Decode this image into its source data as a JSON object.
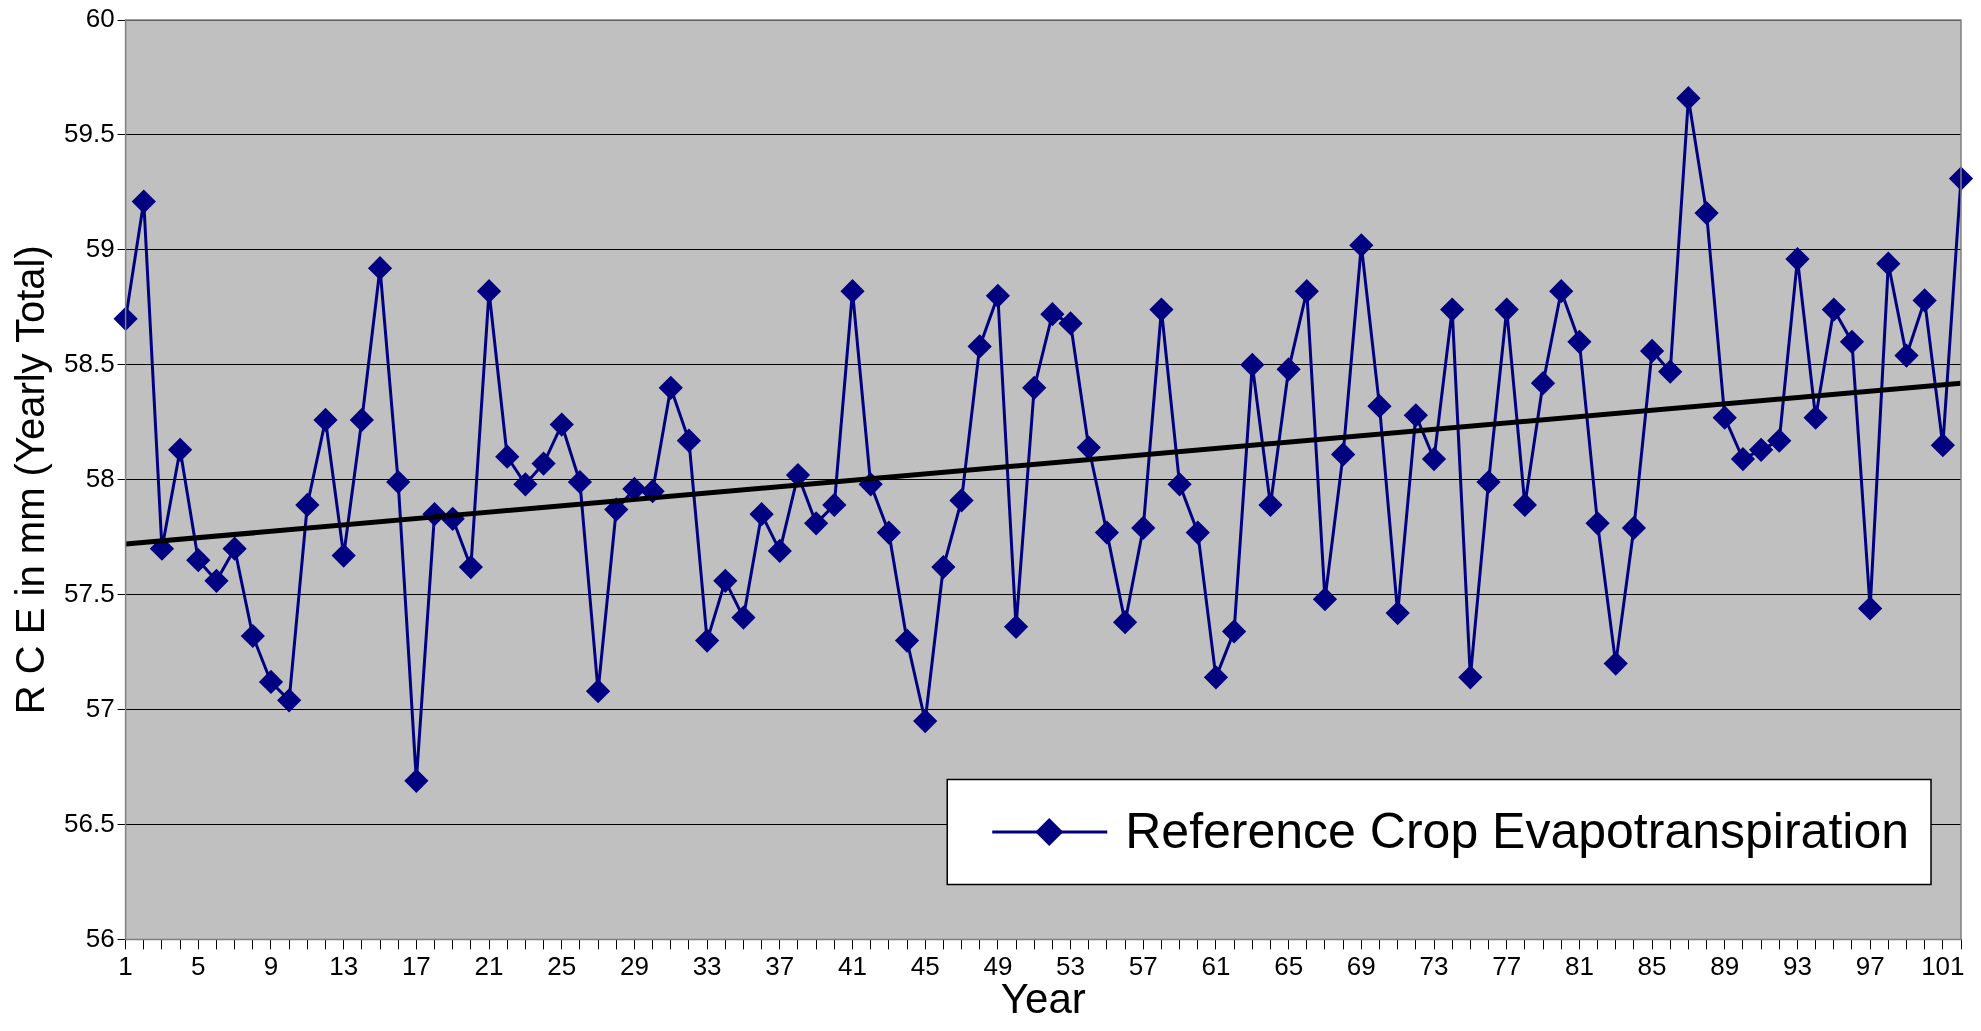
{
  "chart_data": {
    "type": "line",
    "xlabel": "Year",
    "ylabel": "R C E in mm (Yearly Total)",
    "categories": [
      "1",
      null,
      null,
      null,
      "5",
      null,
      null,
      null,
      "9",
      null,
      null,
      null,
      "13",
      null,
      null,
      null,
      "17",
      null,
      null,
      null,
      "21",
      null,
      null,
      null,
      "25",
      null,
      null,
      null,
      "29",
      null,
      null,
      null,
      "33",
      null,
      null,
      null,
      "37",
      null,
      null,
      null,
      "41",
      null,
      null,
      null,
      "45",
      null,
      null,
      null,
      "49",
      null,
      null,
      null,
      "53",
      null,
      null,
      null,
      "57",
      null,
      null,
      null,
      "61",
      null,
      null,
      null,
      "65",
      null,
      null,
      null,
      "69",
      null,
      null,
      null,
      "73",
      null,
      null,
      null,
      "77",
      null,
      null,
      null,
      "81",
      null,
      null,
      null,
      "85",
      null,
      null,
      null,
      "89",
      null,
      null,
      null,
      "93",
      null,
      null,
      null,
      "97",
      null,
      null,
      null,
      "101",
      null
    ],
    "series": [
      {
        "name": "Reference Crop Evapotranspiration",
        "color": "#000080",
        "marker": "diamond",
        "values": [
          58.7,
          59.21,
          57.7,
          58.13,
          57.65,
          57.56,
          57.7,
          57.32,
          57.12,
          57.04,
          57.89,
          58.26,
          57.67,
          58.26,
          58.92,
          57.99,
          56.69,
          57.85,
          57.83,
          57.62,
          58.82,
          58.1,
          57.98,
          58.07,
          58.24,
          57.99,
          57.08,
          57.87,
          57.96,
          57.95,
          58.4,
          58.17,
          57.3,
          57.56,
          57.4,
          57.85,
          57.69,
          58.02,
          57.81,
          57.89,
          58.82,
          57.98,
          57.77,
          57.3,
          56.95,
          57.62,
          57.91,
          58.58,
          58.8,
          57.36,
          58.4,
          58.72,
          58.68,
          58.14,
          57.77,
          57.38,
          57.79,
          58.74,
          57.98,
          57.77,
          57.14,
          57.34,
          58.5,
          57.89,
          58.48,
          58.82,
          57.48,
          58.11,
          59.02,
          58.32,
          57.42,
          58.28,
          58.09,
          58.74,
          57.14,
          57.99,
          58.74,
          57.89,
          58.42,
          58.82,
          58.6,
          57.81,
          57.2,
          57.79,
          58.56,
          58.47,
          59.66,
          59.16,
          58.27,
          58.09,
          58.13,
          58.17,
          58.96,
          58.27,
          58.74,
          58.6,
          57.44,
          58.94,
          58.54,
          58.78,
          58.15,
          59.31
        ]
      },
      {
        "type": "line",
        "color": "#000000",
        "marker": "none",
        "values": [
          57.72,
          null,
          null,
          null,
          null,
          null,
          null,
          null,
          null,
          null,
          null,
          null,
          null,
          null,
          null,
          null,
          null,
          null,
          null,
          null,
          null,
          null,
          null,
          null,
          null,
          null,
          null,
          null,
          null,
          null,
          null,
          null,
          null,
          null,
          null,
          null,
          null,
          null,
          null,
          null,
          null,
          null,
          null,
          null,
          null,
          null,
          null,
          null,
          null,
          null,
          null,
          null,
          null,
          null,
          null,
          null,
          null,
          null,
          null,
          null,
          null,
          null,
          null,
          null,
          null,
          null,
          null,
          null,
          null,
          null,
          null,
          null,
          null,
          null,
          null,
          null,
          null,
          null,
          null,
          null,
          null,
          null,
          null,
          null,
          null,
          null,
          null,
          null,
          null,
          null,
          null,
          null,
          null,
          null,
          null,
          null,
          null,
          null,
          null,
          null,
          null,
          58.42
        ]
      }
    ],
    "ylim": [
      56,
      60
    ],
    "yticks": [
      56,
      56.5,
      57,
      57.5,
      58,
      58.5,
      59,
      59.5,
      60
    ],
    "grid": "y",
    "legend": "bottom right",
    "line_style": "solid"
  }
}
